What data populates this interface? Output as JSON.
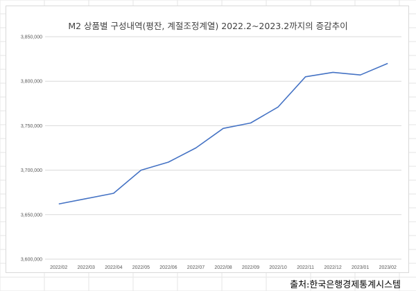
{
  "colors": {
    "line": "#4472C4",
    "gridline": "#d9d9d9",
    "sheet_grid": "#e6e6e6",
    "text": "#595959"
  },
  "source": "출처:한국은행경제통계시스템",
  "chart_data": {
    "type": "line",
    "title": "M2 상품별 구성내역(평잔, 계절조정계열) 2022.2~2023.2까지의 증감추이",
    "xlabel": "",
    "ylabel": "",
    "categories": [
      "2022/02",
      "2022/03",
      "2022/04",
      "2022/05",
      "2022/06",
      "2022/07",
      "2022/08",
      "2022/09",
      "2022/10",
      "2022/11",
      "2022/12",
      "2023/01",
      "2023/02"
    ],
    "series": [
      {
        "values": [
          3662000,
          3668000,
          3674000,
          3700000,
          3709000,
          3725000,
          3747000,
          3753000,
          3771000,
          3805000,
          3810000,
          3807000,
          3820000
        ]
      }
    ],
    "ylim": [
      3600000,
      3850000
    ],
    "yticks": [
      "3,600,000",
      "3,650,000",
      "3,700,000",
      "3,750,000",
      "3,800,000",
      "3,850,000"
    ],
    "ytick_values": [
      3600000,
      3650000,
      3700000,
      3750000,
      3800000,
      3850000
    ],
    "grid": true,
    "legend": "none"
  }
}
